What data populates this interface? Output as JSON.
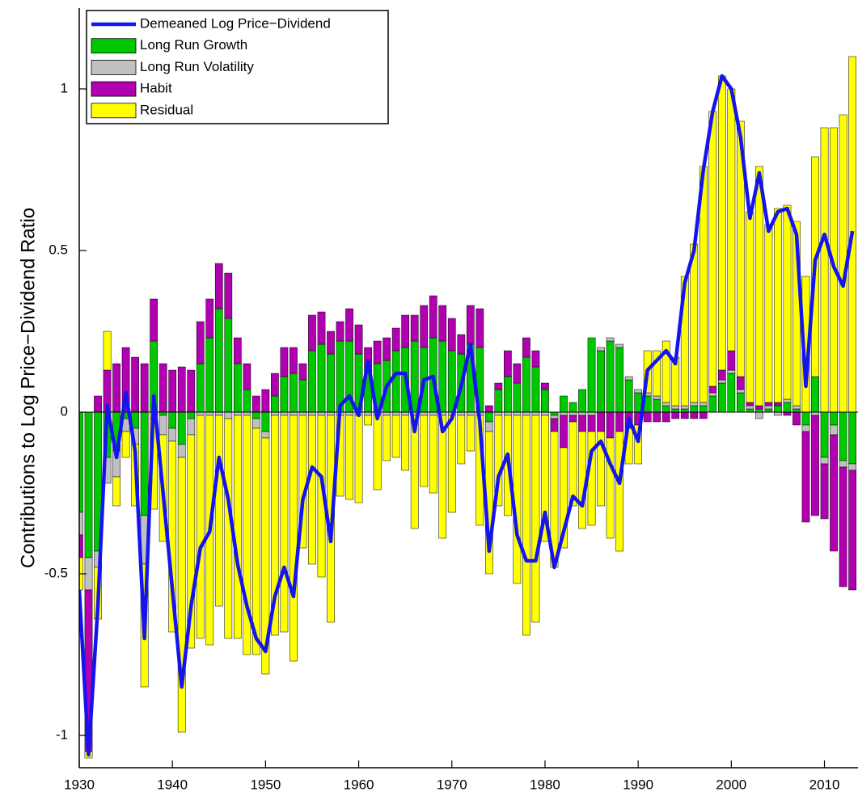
{
  "chart_data": {
    "type": "bar",
    "stacked": true,
    "ylabel": "Contributions to Log Price−Dividend Ratio",
    "x": [
      1930,
      1931,
      1932,
      1933,
      1934,
      1935,
      1936,
      1937,
      1938,
      1939,
      1940,
      1941,
      1942,
      1943,
      1944,
      1945,
      1946,
      1947,
      1948,
      1949,
      1950,
      1951,
      1952,
      1953,
      1954,
      1955,
      1956,
      1957,
      1958,
      1959,
      1960,
      1961,
      1962,
      1963,
      1964,
      1965,
      1966,
      1967,
      1968,
      1969,
      1970,
      1971,
      1972,
      1973,
      1974,
      1975,
      1976,
      1977,
      1978,
      1979,
      1980,
      1981,
      1982,
      1983,
      1984,
      1985,
      1986,
      1987,
      1988,
      1989,
      1990,
      1991,
      1992,
      1993,
      1994,
      1995,
      1996,
      1997,
      1998,
      1999,
      2000,
      2001,
      2002,
      2003,
      2004,
      2005,
      2006,
      2007,
      2008,
      2009,
      2010,
      2011,
      2012,
      2013
    ],
    "series": [
      {
        "name": "Demeaned Log Price−Dividend",
        "type": "line",
        "color": "#1414f0",
        "values": [
          -0.55,
          -1.06,
          -0.6,
          0.02,
          -0.14,
          0.06,
          -0.12,
          -0.7,
          0.05,
          -0.25,
          -0.55,
          -0.85,
          -0.6,
          -0.42,
          -0.37,
          -0.14,
          -0.27,
          -0.47,
          -0.6,
          -0.7,
          -0.74,
          -0.57,
          -0.48,
          -0.57,
          -0.27,
          -0.17,
          -0.2,
          -0.4,
          0.02,
          0.05,
          -0.01,
          0.16,
          -0.02,
          0.08,
          0.12,
          0.12,
          -0.06,
          0.1,
          0.11,
          -0.06,
          -0.02,
          0.08,
          0.21,
          -0.03,
          -0.43,
          -0.2,
          -0.13,
          -0.38,
          -0.46,
          -0.46,
          -0.31,
          -0.48,
          -0.37,
          -0.26,
          -0.29,
          -0.12,
          -0.09,
          -0.16,
          -0.22,
          -0.02,
          -0.09,
          0.13,
          0.16,
          0.19,
          0.15,
          0.4,
          0.5,
          0.75,
          0.93,
          1.04,
          1.0,
          0.85,
          0.6,
          0.74,
          0.56,
          0.62,
          0.63,
          0.55,
          0.08,
          0.47,
          0.55,
          0.45,
          0.39,
          0.56
        ]
      },
      {
        "name": "Long Run Growth",
        "type": "bar",
        "color": "#00c800",
        "values": [
          -0.31,
          -0.45,
          -0.43,
          -0.14,
          -0.12,
          -0.02,
          -0.05,
          -0.32,
          0.22,
          -0.01,
          -0.05,
          -0.1,
          -0.02,
          0.15,
          0.23,
          0.32,
          0.29,
          0.15,
          0.07,
          -0.02,
          -0.06,
          0.05,
          0.11,
          0.12,
          0.1,
          0.19,
          0.21,
          0.18,
          0.22,
          0.22,
          0.18,
          0.14,
          0.15,
          0.16,
          0.19,
          0.2,
          0.22,
          0.2,
          0.23,
          0.22,
          0.19,
          0.18,
          0.21,
          0.2,
          -0.03,
          0.07,
          0.11,
          0.09,
          0.17,
          0.14,
          0.07,
          -0.01,
          0.05,
          0.03,
          0.07,
          0.23,
          0.19,
          0.22,
          0.2,
          0.1,
          0.06,
          0.05,
          0.04,
          0.02,
          0.01,
          0.01,
          0.02,
          0.02,
          0.05,
          0.09,
          0.12,
          0.06,
          0.01,
          0.01,
          0.01,
          0.02,
          0.03,
          0.01,
          -0.04,
          0.11,
          -0.14,
          -0.04,
          -0.15,
          -0.16
        ]
      },
      {
        "name": "Long Run Volatility",
        "type": "bar",
        "color": "#c0c0c0",
        "values": [
          -0.07,
          -0.1,
          -0.05,
          -0.08,
          -0.08,
          -0.04,
          -0.05,
          -0.15,
          -0.02,
          -0.06,
          -0.04,
          -0.04,
          -0.05,
          -0.01,
          -0.01,
          -0.01,
          -0.02,
          -0.01,
          -0.01,
          -0.03,
          -0.02,
          -0.01,
          -0.01,
          -0.01,
          -0.01,
          -0.01,
          -0.01,
          -0.01,
          -0.01,
          -0.01,
          -0.01,
          -0.01,
          -0.01,
          -0.01,
          -0.01,
          -0.01,
          -0.01,
          -0.01,
          -0.01,
          -0.01,
          -0.01,
          -0.01,
          -0.01,
          -0.01,
          -0.03,
          -0.01,
          -0.01,
          -0.01,
          -0.01,
          -0.01,
          -0.01,
          -0.01,
          -0.01,
          -0.01,
          -0.01,
          -0.01,
          0.01,
          0.01,
          0.01,
          0.01,
          0.01,
          0.01,
          0.01,
          0.01,
          0.01,
          0.01,
          0.01,
          0.01,
          0.01,
          0.01,
          0.01,
          0.01,
          0.01,
          -0.02,
          0.01,
          -0.01,
          0.01,
          0.01,
          -0.02,
          -0.01,
          -0.02,
          -0.03,
          -0.02,
          -0.02
        ]
      },
      {
        "name": "Habit",
        "type": "bar",
        "color": "#b000b0",
        "values": [
          -0.07,
          -0.5,
          0.05,
          0.13,
          0.15,
          0.2,
          0.17,
          0.15,
          0.13,
          0.15,
          0.13,
          0.14,
          0.13,
          0.13,
          0.12,
          0.14,
          0.14,
          0.08,
          0.08,
          0.05,
          0.07,
          0.07,
          0.09,
          0.08,
          0.05,
          0.11,
          0.1,
          0.07,
          0.06,
          0.1,
          0.09,
          0.06,
          0.07,
          0.07,
          0.07,
          0.1,
          0.08,
          0.13,
          0.13,
          0.11,
          0.1,
          0.06,
          0.12,
          0.12,
          0.02,
          0.02,
          0.08,
          0.06,
          0.06,
          0.05,
          0.02,
          -0.04,
          -0.1,
          -0.02,
          -0.05,
          -0.05,
          -0.06,
          -0.08,
          -0.06,
          -0.05,
          -0.04,
          -0.03,
          -0.03,
          -0.03,
          -0.02,
          -0.02,
          -0.02,
          -0.02,
          0.02,
          0.03,
          0.06,
          0.04,
          0.01,
          0.01,
          0.01,
          0.01,
          -0.01,
          -0.04,
          -0.28,
          -0.31,
          -0.17,
          -0.36,
          -0.37,
          -0.37
        ]
      },
      {
        "name": "Residual",
        "type": "bar",
        "color": "#ffff00",
        "values": [
          -0.1,
          -0.02,
          -0.16,
          0.12,
          -0.09,
          -0.08,
          -0.19,
          -0.38,
          -0.28,
          -0.33,
          -0.59,
          -0.85,
          -0.66,
          -0.69,
          -0.71,
          -0.59,
          -0.68,
          -0.69,
          -0.74,
          -0.7,
          -0.73,
          -0.68,
          -0.67,
          -0.76,
          -0.41,
          -0.46,
          -0.5,
          -0.64,
          -0.25,
          -0.26,
          -0.27,
          -0.03,
          -0.23,
          -0.14,
          -0.13,
          -0.17,
          -0.35,
          -0.22,
          -0.24,
          -0.38,
          -0.3,
          -0.15,
          -0.11,
          -0.34,
          -0.44,
          -0.28,
          -0.31,
          -0.52,
          -0.68,
          -0.64,
          -0.39,
          -0.42,
          -0.31,
          -0.26,
          -0.3,
          -0.29,
          -0.23,
          -0.31,
          -0.37,
          -0.11,
          -0.12,
          0.13,
          0.14,
          0.19,
          0.15,
          0.4,
          0.49,
          0.73,
          0.85,
          0.91,
          0.81,
          0.79,
          0.59,
          0.74,
          0.55,
          0.6,
          0.6,
          0.57,
          0.42,
          0.68,
          0.88,
          0.88,
          0.92,
          1.1
        ]
      }
    ],
    "xlim": [
      1930,
      2013.6
    ],
    "xticks": [
      1930,
      1940,
      1950,
      1960,
      1970,
      1980,
      1990,
      2000,
      2010
    ],
    "ylim": [
      -1.1,
      1.25
    ],
    "yticks": [
      -1,
      -0.5,
      0,
      0.5,
      1
    ],
    "legend": "upper-left"
  }
}
